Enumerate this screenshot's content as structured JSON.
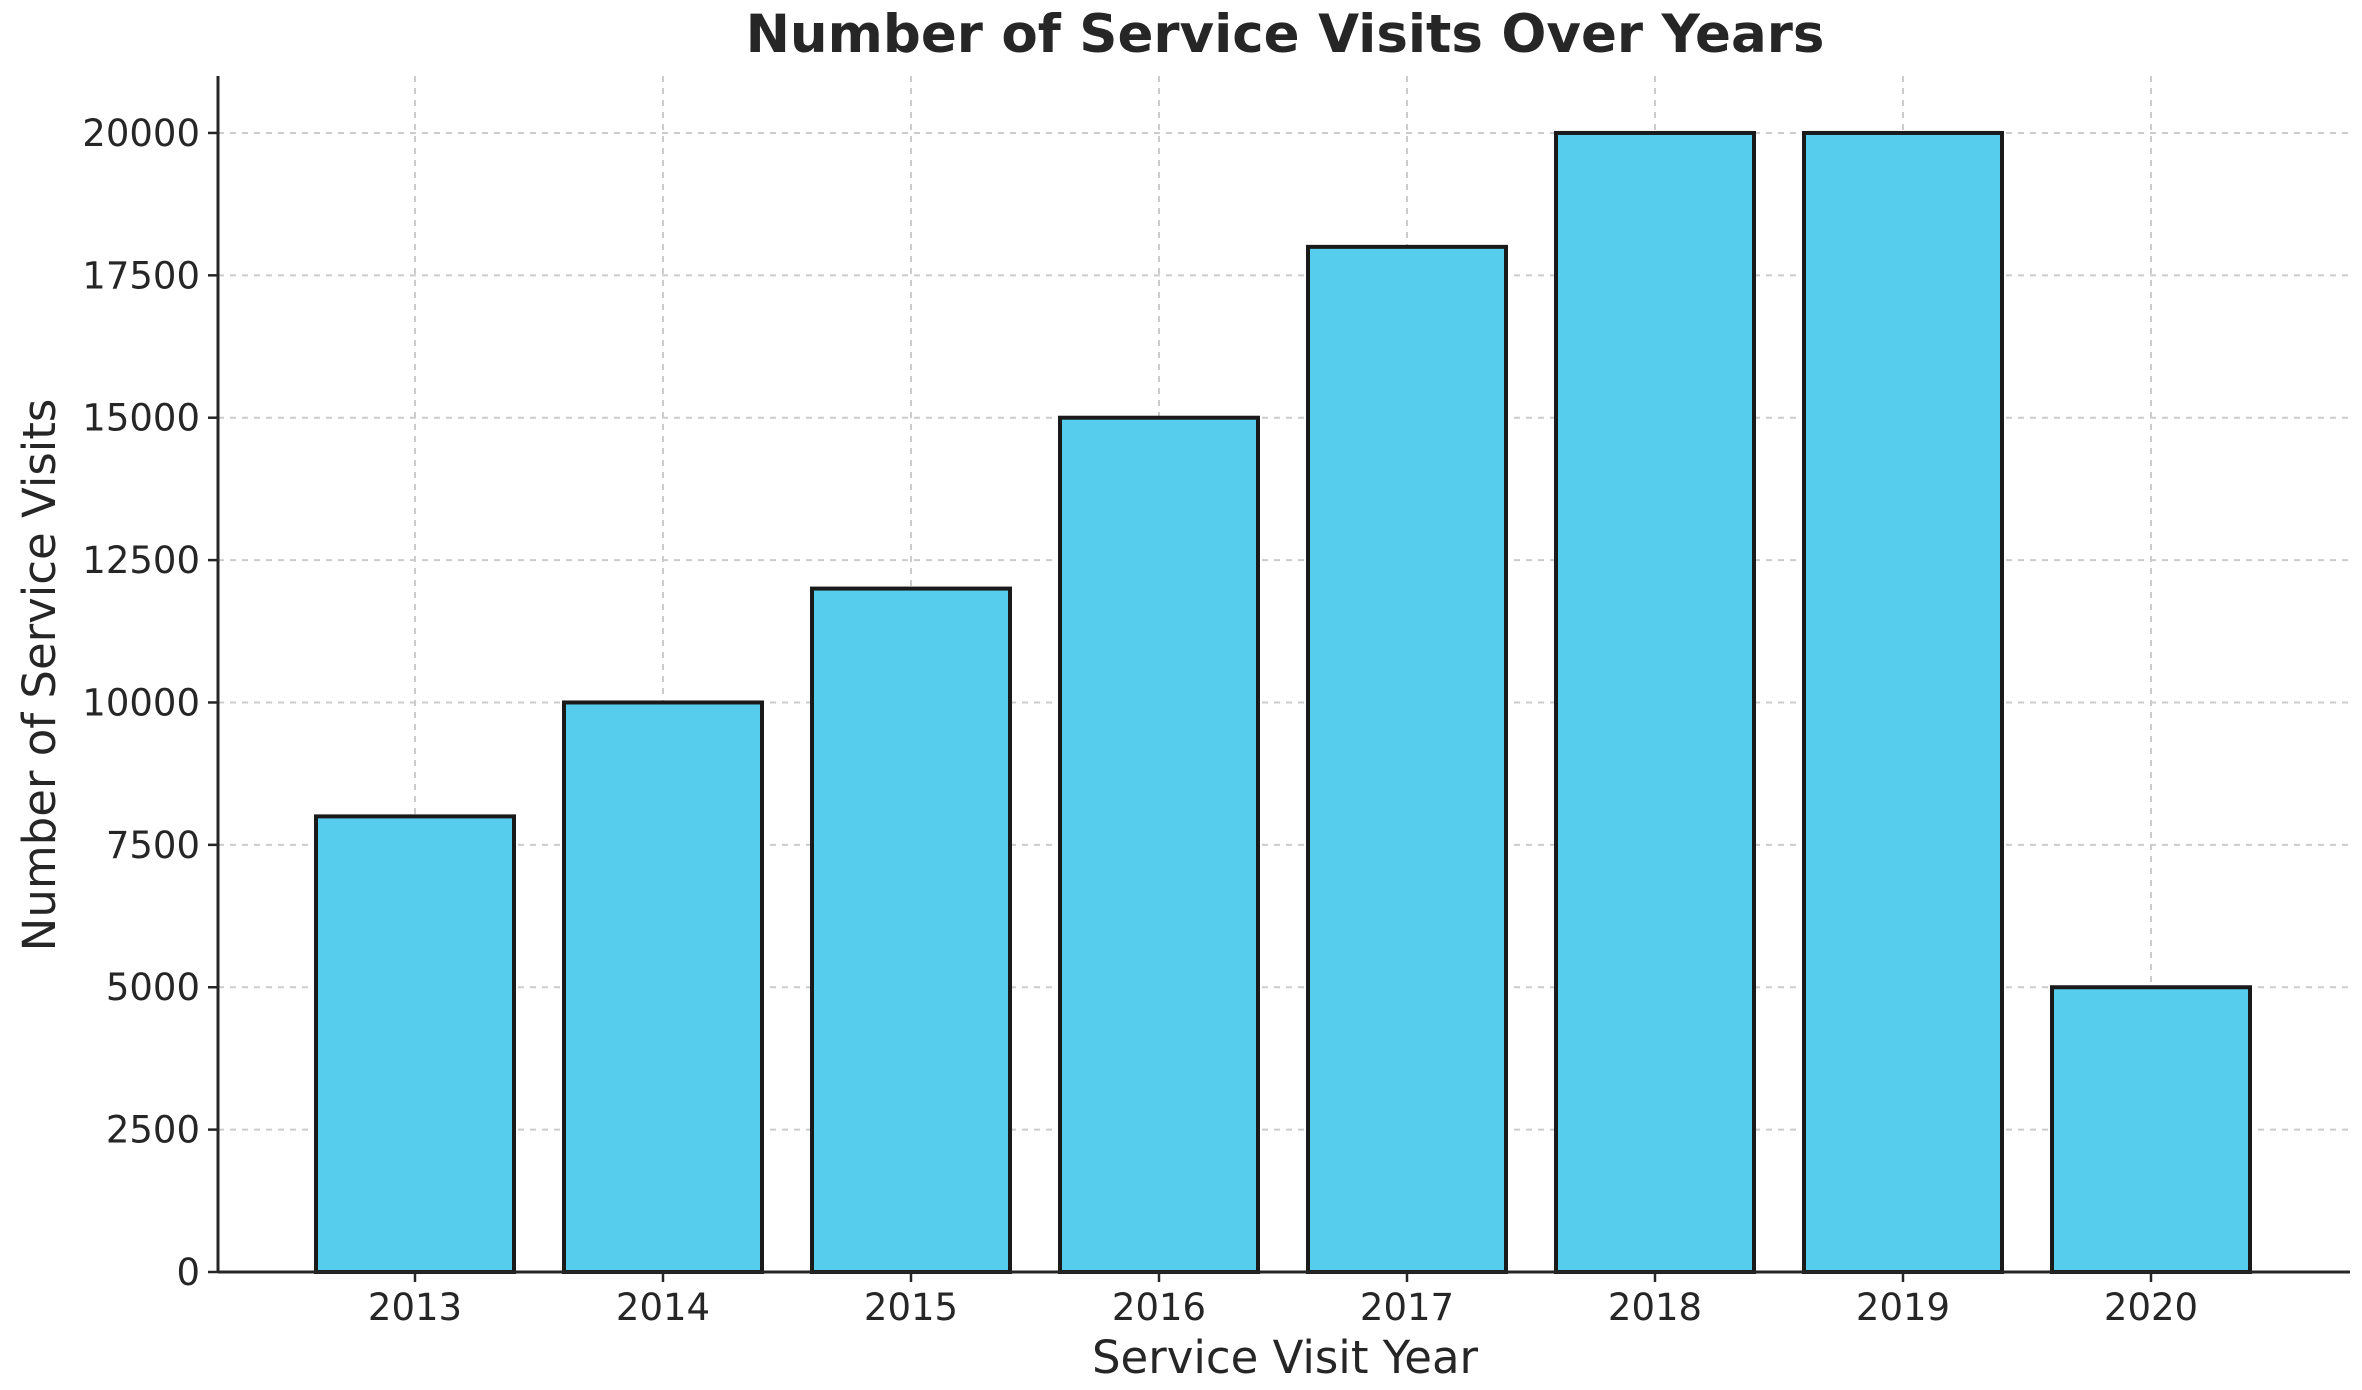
{
  "chart_data": {
    "type": "bar",
    "title": "Number of Service Visits Over Years",
    "xlabel": "Service Visit Year",
    "ylabel": "Number of Service Visits",
    "categories": [
      "2013",
      "2014",
      "2015",
      "2016",
      "2017",
      "2018",
      "2019",
      "2020"
    ],
    "values": [
      8000,
      10000,
      12000,
      15000,
      18000,
      20000,
      20000,
      5000
    ],
    "ylim": [
      0,
      21000
    ],
    "yticks": [
      0,
      2500,
      5000,
      7500,
      10000,
      12500,
      15000,
      17500,
      20000
    ],
    "ytick_labels": [
      "0",
      "2500",
      "5000",
      "7500",
      "10000",
      "12500",
      "15000",
      "17500",
      "20000"
    ],
    "grid": true,
    "colors": {
      "bar_fill": "#56cdec",
      "bar_edge": "#1a1a1a",
      "text": "#262626",
      "grid": "#cccccc"
    }
  }
}
